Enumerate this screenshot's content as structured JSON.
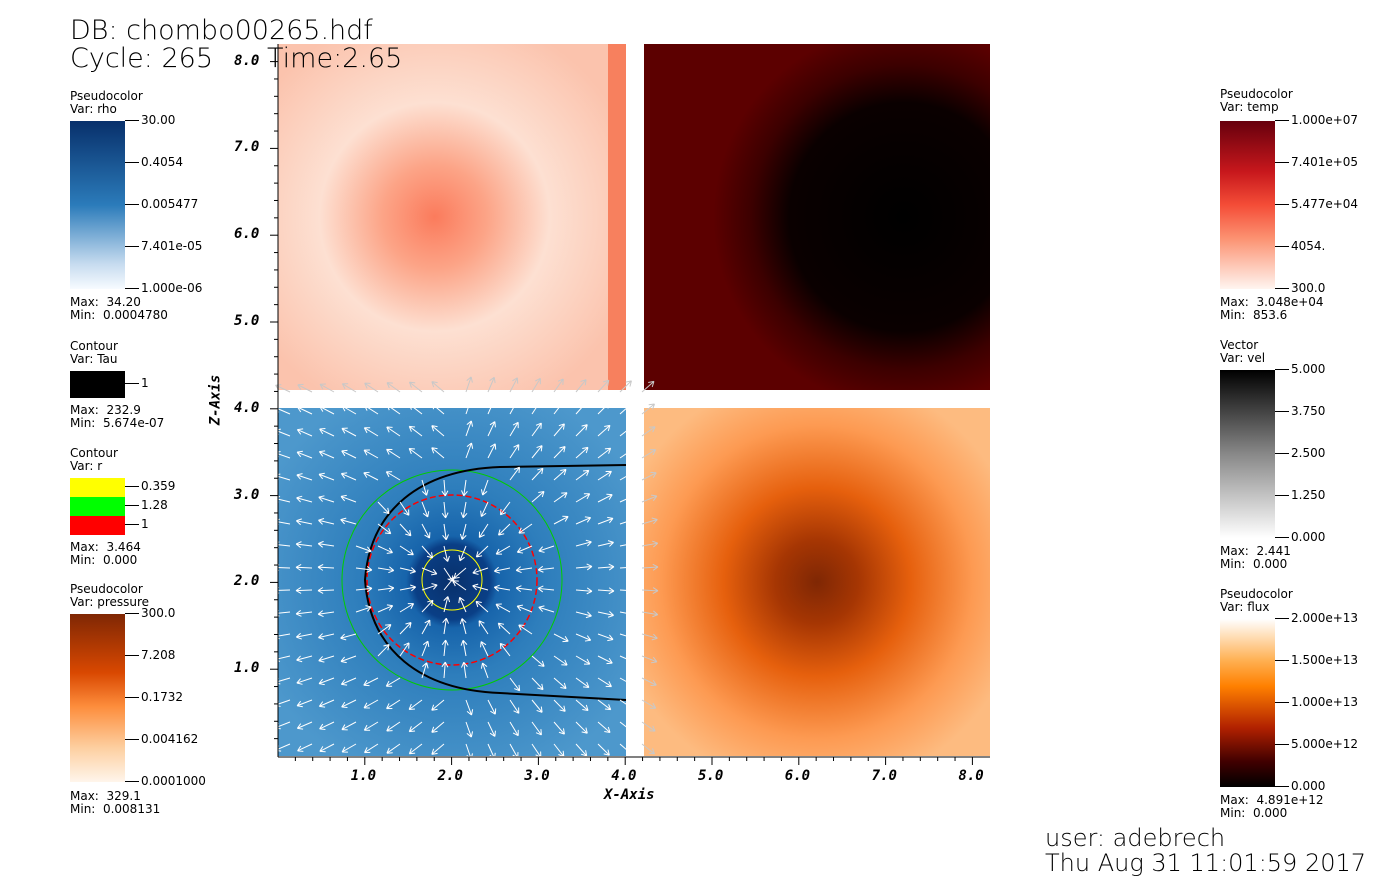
{
  "header": {
    "db": "DB: chombo00265.hdf",
    "cycle": "Cycle: 265",
    "time": "Time:2.65"
  },
  "footer": {
    "user": "user: adebrech",
    "date": "Thu Aug 31 11:01:59 2017"
  },
  "legends_left": [
    {
      "type": "Pseudocolor",
      "var": "Var: rho",
      "ticks": [
        "30.00",
        "0.4054",
        "0.005477",
        "7.401e-05",
        "1.000e-06"
      ],
      "max": "Max:  34.20",
      "min": "Min:  0.0004780"
    },
    {
      "type": "Contour",
      "var": "Var: Tau",
      "ticks": [
        "1"
      ],
      "max": "Max:  232.9",
      "min": "Min:  5.674e-07"
    },
    {
      "type": "Contour",
      "var": "Var: r",
      "ticks": [
        "0.359",
        "1.28",
        "1"
      ],
      "max": "Max:  3.464",
      "min": "Min:  0.000"
    },
    {
      "type": "Pseudocolor",
      "var": "Var: pressure",
      "ticks": [
        "300.0",
        "7.208",
        "0.1732",
        "0.004162",
        "0.0001000"
      ],
      "max": "Max:  329.1",
      "min": "Min:  0.008131"
    }
  ],
  "legends_right": [
    {
      "type": "Pseudocolor",
      "var": "Var: temp",
      "ticks": [
        "1.000e+07",
        "7.401e+05",
        "5.477e+04",
        "4054.",
        "300.0"
      ],
      "max": "Max:  3.048e+04",
      "min": "Min:  853.6"
    },
    {
      "type": "Vector",
      "var": "Var: vel",
      "ticks": [
        "5.000",
        "3.750",
        "2.500",
        "1.250",
        "0.000"
      ],
      "max": "Max:  2.441",
      "min": "Min:  0.000"
    },
    {
      "type": "Pseudocolor",
      "var": "Var: flux",
      "ticks": [
        "2.000e+13",
        "1.500e+13",
        "1.000e+13",
        "5.000e+12",
        "0.000"
      ],
      "max": "Max:  4.891e+12",
      "min": "Min:  0.000"
    }
  ],
  "colors": {
    "rho": "#2b6fb0",
    "temp": "#5c0000",
    "pressure_bg": "#f8c49a",
    "flux": "#fdbb80",
    "contour_r": [
      "#ffff00",
      "#00ff00",
      "#ff0000"
    ]
  },
  "chart_data": {
    "type": "heatmap",
    "xlabel": "X-Axis",
    "ylabel": "Z-Axis",
    "xticks": [
      "1.0",
      "2.0",
      "3.0",
      "4.0",
      "5.0",
      "6.0",
      "7.0",
      "8.0"
    ],
    "yticks": [
      "1.0",
      "2.0",
      "3.0",
      "4.0",
      "5.0",
      "6.0",
      "7.0",
      "8.0"
    ],
    "xlim": [
      0,
      8.2
    ],
    "ylim": [
      0,
      8.0
    ],
    "panels": [
      {
        "name": "temp-pink",
        "x": [
          0,
          4
        ],
        "y": [
          4,
          8
        ],
        "hot_center": [
          1.95,
          6.2
        ]
      },
      {
        "name": "temp-dark",
        "x": [
          4.2,
          8.2
        ],
        "y": [
          4,
          8
        ],
        "cold_center": [
          6.5,
          6.2
        ]
      },
      {
        "name": "rho-vel",
        "x": [
          0,
          4
        ],
        "y": [
          0,
          4
        ],
        "center": [
          2.0,
          2.0
        ]
      },
      {
        "name": "flux",
        "x": [
          4.2,
          8.2
        ],
        "y": [
          0,
          4
        ],
        "peak": [
          6.2,
          2.0
        ]
      }
    ]
  }
}
